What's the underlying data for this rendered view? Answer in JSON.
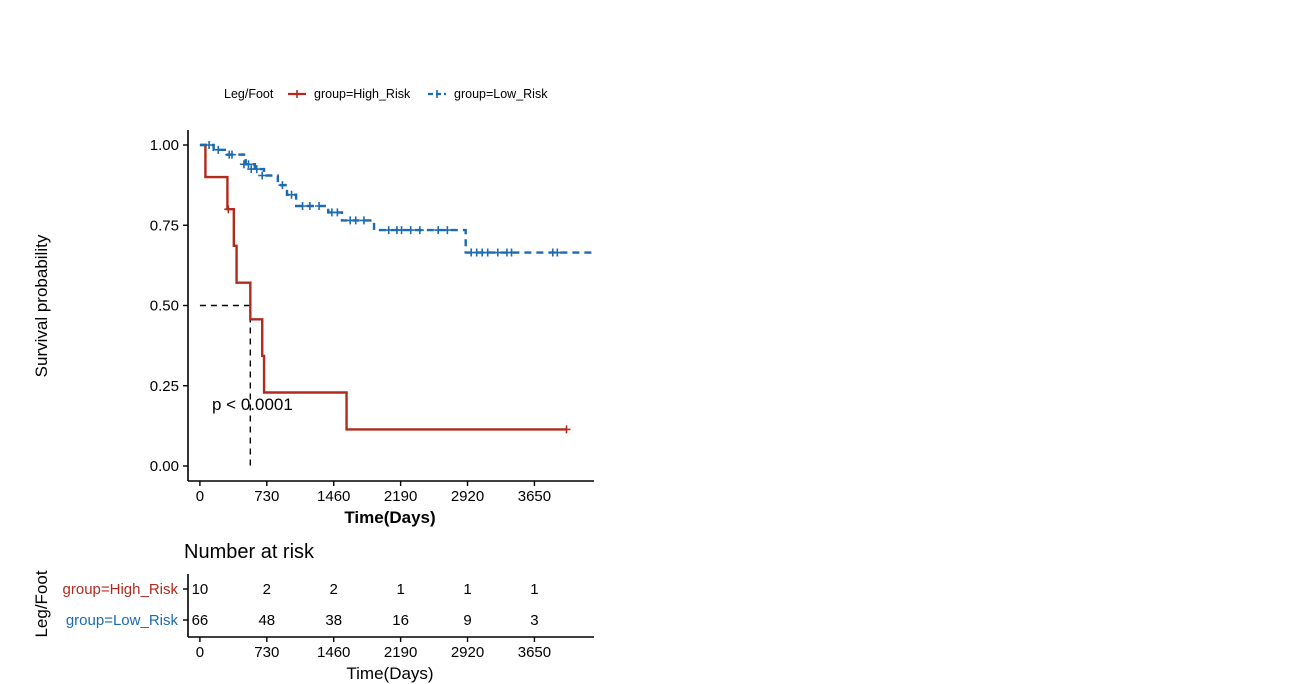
{
  "chart_data": {
    "type": "line",
    "ylabel": "Survival probability",
    "xlabel": "Time(Days)",
    "xlim": [
      -130,
      4300
    ],
    "ylim": [
      0,
      1.0
    ],
    "x_ticks": [
      0,
      730,
      1460,
      2190,
      2920,
      3650
    ],
    "y_ticks": [
      0,
      0.25,
      0.5,
      0.75,
      1.0
    ],
    "y_tick_labels": [
      "0.00",
      "0.25",
      "0.50",
      "0.75",
      "1.00"
    ],
    "legend": {
      "title": "Leg/Foot",
      "position": "top",
      "entries": [
        "group=High_Risk",
        "group=Low_Risk"
      ]
    },
    "p_value_text": "p < 0.0001",
    "median_marker": {
      "x": 550,
      "y": 0.5
    },
    "series": [
      {
        "name": "group=High_Risk",
        "color": "#b22a1e",
        "style": "solid",
        "steps": [
          [
            0,
            1.0
          ],
          [
            60,
            0.9
          ],
          [
            300,
            0.8
          ],
          [
            370,
            0.686
          ],
          [
            400,
            0.571
          ],
          [
            550,
            0.457
          ],
          [
            680,
            0.343
          ],
          [
            700,
            0.229
          ],
          [
            1600,
            0.114
          ],
          [
            4000,
            0.114
          ]
        ],
        "censors": [
          [
            310,
            0.8
          ],
          [
            4000,
            0.114
          ]
        ]
      },
      {
        "name": "group=Low_Risk",
        "color": "#1a6bb0",
        "style": "dashed",
        "steps": [
          [
            0,
            1.0
          ],
          [
            150,
            0.985
          ],
          [
            300,
            0.97
          ],
          [
            500,
            0.94
          ],
          [
            600,
            0.925
          ],
          [
            700,
            0.905
          ],
          [
            850,
            0.875
          ],
          [
            950,
            0.845
          ],
          [
            1050,
            0.81
          ],
          [
            1400,
            0.79
          ],
          [
            1550,
            0.765
          ],
          [
            1900,
            0.735
          ],
          [
            2900,
            0.665
          ],
          [
            4300,
            0.665
          ]
        ],
        "censors": [
          [
            100,
            1.0
          ],
          [
            200,
            0.985
          ],
          [
            320,
            0.97
          ],
          [
            350,
            0.97
          ],
          [
            480,
            0.94
          ],
          [
            530,
            0.94
          ],
          [
            560,
            0.925
          ],
          [
            620,
            0.925
          ],
          [
            680,
            0.905
          ],
          [
            900,
            0.875
          ],
          [
            1000,
            0.845
          ],
          [
            1120,
            0.81
          ],
          [
            1200,
            0.81
          ],
          [
            1300,
            0.81
          ],
          [
            1440,
            0.79
          ],
          [
            1500,
            0.79
          ],
          [
            1640,
            0.765
          ],
          [
            1700,
            0.765
          ],
          [
            1790,
            0.765
          ],
          [
            2060,
            0.735
          ],
          [
            2150,
            0.735
          ],
          [
            2200,
            0.735
          ],
          [
            2300,
            0.735
          ],
          [
            2400,
            0.735
          ],
          [
            2600,
            0.735
          ],
          [
            2700,
            0.735
          ],
          [
            2960,
            0.665
          ],
          [
            3020,
            0.665
          ],
          [
            3080,
            0.665
          ],
          [
            3140,
            0.665
          ],
          [
            3250,
            0.665
          ],
          [
            3350,
            0.665
          ],
          [
            3400,
            0.665
          ],
          [
            3850,
            0.665
          ],
          [
            3900,
            0.665
          ]
        ]
      }
    ]
  },
  "risk_table": {
    "title": "Number at risk",
    "ylabel": "Leg/Foot",
    "xlabel": "Time(Days)",
    "x_ticks": [
      0,
      730,
      1460,
      2190,
      2920,
      3650
    ],
    "rows": [
      {
        "label": "group=High_Risk",
        "color": "#b22a1e",
        "values": [
          "10",
          "2",
          "2",
          "1",
          "1",
          "1"
        ]
      },
      {
        "label": "group=Low_Risk",
        "color": "#1a6bb0",
        "values": [
          "66",
          "48",
          "38",
          "16",
          "9",
          "3"
        ]
      }
    ]
  }
}
